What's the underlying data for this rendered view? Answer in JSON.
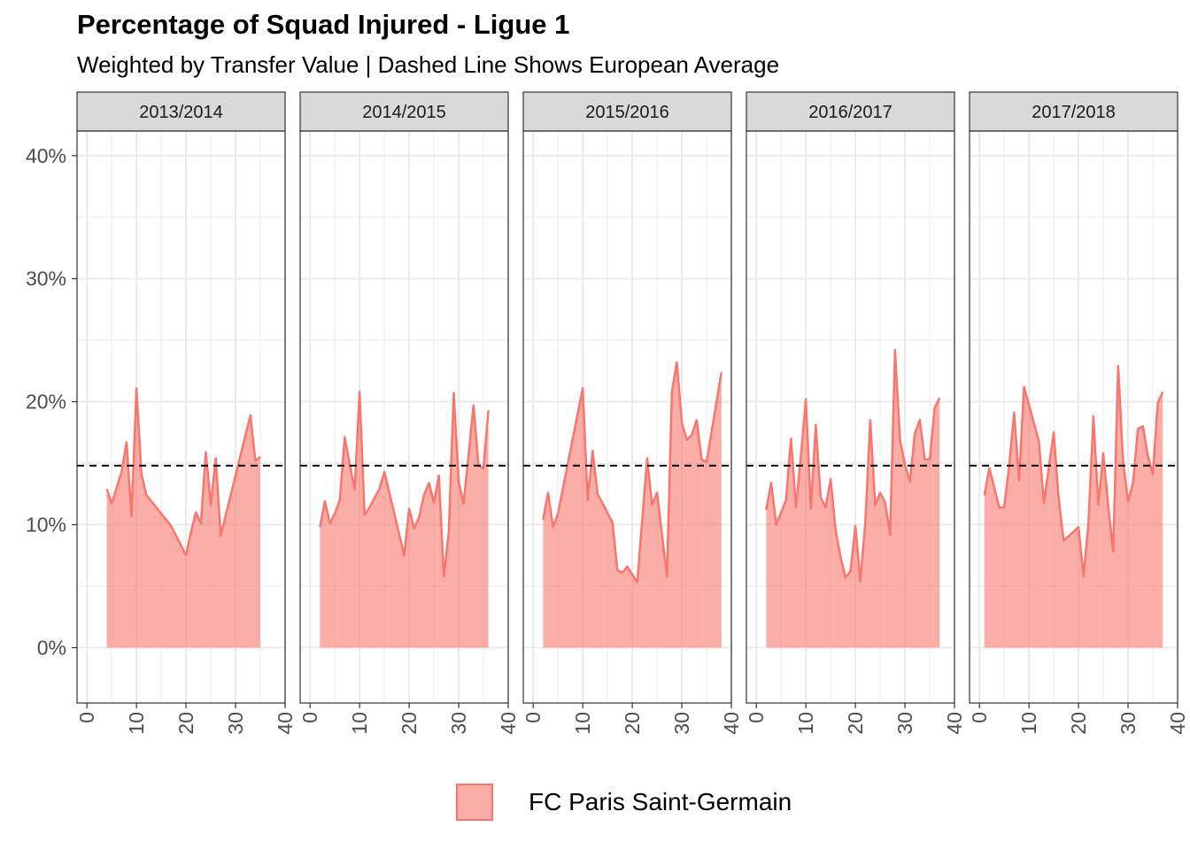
{
  "chart_data": {
    "type": "area",
    "title": "Percentage of Squad Injured - Ligue 1",
    "subtitle": "Weighted by Transfer Value | Dashed Line Shows European Average",
    "facets": [
      "2013/2014",
      "2014/2015",
      "2015/2016",
      "2016/2017",
      "2017/2018"
    ],
    "xlim": [
      -2,
      40
    ],
    "xticks": [
      "0",
      "10",
      "20",
      "30",
      "40"
    ],
    "ylim": [
      -4.5,
      42
    ],
    "yticks": [
      "0%",
      "10%",
      "20%",
      "30%",
      "40%"
    ],
    "european_average": 14.8,
    "colors": {
      "series": "#F8766D",
      "grid": "#ebebeb",
      "strip_bg": "#d9d9d9"
    },
    "legend": {
      "position": "bottom",
      "entries": [
        {
          "name": "FC Paris Saint-Germain"
        }
      ]
    },
    "panels": [
      {
        "season": "2013/2014",
        "x": [
          4,
          5,
          7,
          8,
          9,
          10,
          11,
          12,
          17,
          20,
          21,
          22,
          23,
          24,
          25,
          26,
          27,
          33,
          34,
          35
        ],
        "y": [
          12.9,
          11.7,
          14.3,
          16.7,
          10.7,
          21.1,
          14.1,
          12.4,
          9.9,
          7.5,
          9.4,
          11.0,
          10.1,
          15.9,
          11.6,
          15.4,
          9.1,
          18.9,
          15.2,
          15.5
        ]
      },
      {
        "season": "2014/2015",
        "x": [
          2,
          3,
          4,
          5,
          6,
          7,
          8,
          9,
          10,
          11,
          12,
          14,
          15,
          19,
          20,
          21,
          22,
          23,
          24,
          25,
          26,
          27,
          28,
          29,
          30,
          31,
          33,
          34,
          35,
          36
        ],
        "y": [
          9.8,
          11.9,
          10.1,
          10.9,
          12.0,
          17.1,
          14.9,
          12.9,
          20.8,
          10.8,
          11.4,
          12.9,
          14.3,
          7.5,
          11.3,
          9.7,
          10.6,
          12.4,
          13.4,
          11.8,
          14.0,
          5.8,
          9.4,
          20.7,
          13.5,
          11.7,
          19.7,
          14.8,
          14.6,
          19.3
        ]
      },
      {
        "season": "2015/2016",
        "x": [
          2,
          3,
          4,
          5,
          10,
          11,
          12,
          13,
          16,
          17,
          18,
          19,
          21,
          23,
          24,
          25,
          27,
          28,
          29,
          30,
          31,
          32,
          33,
          34,
          35,
          38
        ],
        "y": [
          10.4,
          12.6,
          9.8,
          10.9,
          21.1,
          12.0,
          16.0,
          12.5,
          10.2,
          6.3,
          6.1,
          6.6,
          5.3,
          15.4,
          11.6,
          12.6,
          5.8,
          20.8,
          23.2,
          18.3,
          16.9,
          17.3,
          18.5,
          15.3,
          15.1,
          22.4
        ]
      },
      {
        "season": "2016/2017",
        "x": [
          2,
          3,
          4,
          6,
          7,
          8,
          9,
          10,
          11,
          12,
          13,
          14,
          15,
          16,
          17,
          18,
          19,
          20,
          21,
          22,
          23,
          24,
          25,
          26,
          27,
          28,
          29,
          30,
          31,
          32,
          33,
          34,
          35,
          36,
          37
        ],
        "y": [
          11.2,
          13.4,
          10.0,
          12.0,
          17.0,
          11.4,
          15.6,
          20.2,
          11.3,
          18.1,
          12.2,
          11.4,
          13.7,
          9.6,
          7.4,
          5.7,
          6.2,
          9.9,
          5.4,
          10.2,
          18.5,
          11.6,
          12.6,
          11.8,
          9.2,
          24.2,
          16.9,
          14.9,
          13.5,
          17.4,
          18.5,
          15.3,
          15.3,
          19.5,
          20.3
        ]
      },
      {
        "season": "2017/2018",
        "x": [
          1,
          2,
          4,
          5,
          6,
          7,
          8,
          9,
          12,
          13,
          15,
          16,
          17,
          20,
          21,
          22,
          23,
          24,
          25,
          26,
          27,
          28,
          29,
          30,
          31,
          32,
          33,
          34,
          35,
          36,
          37
        ],
        "y": [
          12.4,
          14.6,
          11.4,
          11.4,
          14.8,
          19.1,
          13.6,
          21.2,
          16.8,
          11.8,
          17.5,
          12.1,
          8.7,
          9.8,
          5.8,
          10.1,
          18.8,
          11.6,
          15.8,
          11.5,
          7.8,
          22.9,
          15.1,
          11.9,
          13.4,
          17.8,
          18.0,
          15.6,
          14.1,
          19.9,
          20.8
        ]
      }
    ]
  }
}
